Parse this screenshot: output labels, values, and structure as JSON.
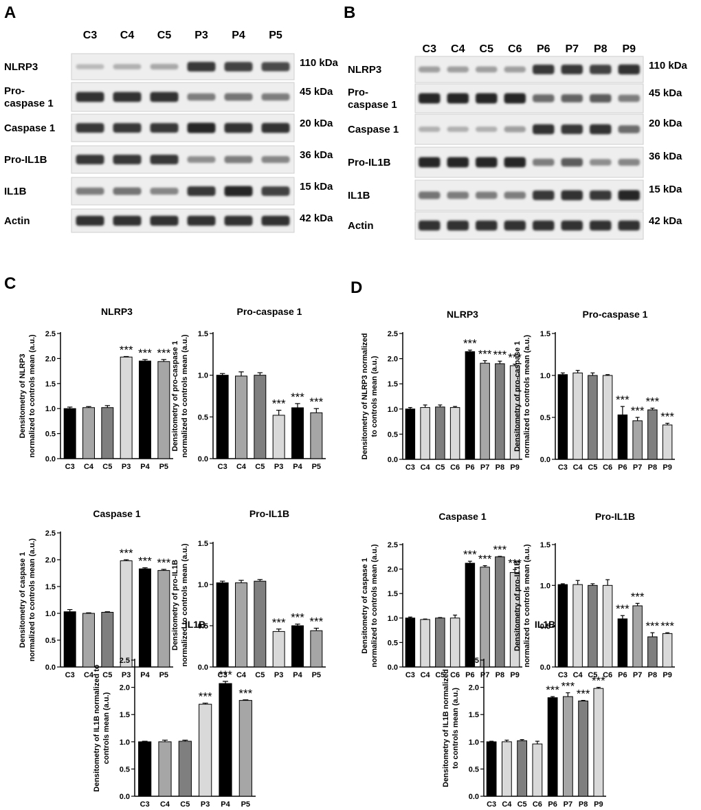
{
  "panels": {
    "A": "A",
    "B": "B",
    "C": "C",
    "D": "D"
  },
  "blots": [
    {
      "id": "blot-a",
      "lanes": [
        "C3",
        "C4",
        "C5",
        "P3",
        "P4",
        "P5"
      ],
      "rows": [
        {
          "label": [
            "NLRP3"
          ],
          "kda": "110 kDa"
        },
        {
          "label": [
            "Pro-",
            "caspase 1"
          ],
          "kda": "45 kDa"
        },
        {
          "label": [
            "Caspase 1"
          ],
          "kda": "20 kDa"
        },
        {
          "label": [
            "Pro-IL1B"
          ],
          "kda": "36 kDa"
        },
        {
          "label": [
            "IL1B"
          ],
          "kda": "15 kDa"
        },
        {
          "label": [
            "Actin"
          ],
          "kda": "42 kDa"
        }
      ],
      "intensity": [
        [
          0.15,
          0.2,
          0.25,
          0.9,
          0.85,
          0.8
        ],
        [
          0.95,
          0.95,
          0.95,
          0.5,
          0.55,
          0.5
        ],
        [
          0.9,
          0.9,
          0.9,
          1.0,
          0.95,
          0.95
        ],
        [
          0.9,
          0.9,
          0.9,
          0.4,
          0.5,
          0.45
        ],
        [
          0.5,
          0.55,
          0.45,
          0.9,
          1.0,
          0.85
        ],
        [
          0.95,
          0.95,
          0.95,
          0.95,
          0.95,
          0.95
        ]
      ]
    },
    {
      "id": "blot-b",
      "lanes": [
        "C3",
        "C4",
        "C5",
        "C6",
        "P6",
        "P7",
        "P8",
        "P9"
      ],
      "rows": [
        {
          "label": [
            "NLRP3"
          ],
          "kda": "110 kDa"
        },
        {
          "label": [
            "Pro-",
            "caspase 1"
          ],
          "kda": "45 kDa"
        },
        {
          "label": [
            "Caspase 1"
          ],
          "kda": "20 kDa"
        },
        {
          "label": [
            "Pro-IL1B"
          ],
          "kda": "36 kDa"
        },
        {
          "label": [
            "IL1B"
          ],
          "kda": "15 kDa"
        },
        {
          "label": [
            "Actin"
          ],
          "kda": "42 kDa"
        }
      ],
      "intensity": [
        [
          0.3,
          0.3,
          0.3,
          0.3,
          0.9,
          0.9,
          0.85,
          0.95
        ],
        [
          1.0,
          1.0,
          1.0,
          1.0,
          0.6,
          0.65,
          0.7,
          0.5
        ],
        [
          0.2,
          0.2,
          0.2,
          0.3,
          0.95,
          0.9,
          0.95,
          0.6
        ],
        [
          1.0,
          1.0,
          1.0,
          1.0,
          0.5,
          0.7,
          0.4,
          0.45
        ],
        [
          0.55,
          0.5,
          0.5,
          0.5,
          0.9,
          0.95,
          0.9,
          1.0
        ],
        [
          0.95,
          0.95,
          0.95,
          0.95,
          0.95,
          0.95,
          0.95,
          0.95
        ]
      ]
    }
  ],
  "chart_data": [
    {
      "id": "c-nlrp3",
      "type": "bar",
      "title": "NLRP3",
      "ylabel": [
        "Densitometry of NLRP3",
        "normalized to controls mean (a.u.)"
      ],
      "categories": [
        "C3",
        "C4",
        "C5",
        "P3",
        "P4",
        "P5"
      ],
      "values": [
        1.0,
        1.02,
        1.02,
        2.03,
        1.95,
        1.94
      ],
      "errors": [
        0.03,
        0.02,
        0.04,
        0.01,
        0.03,
        0.04
      ],
      "significance": [
        "",
        "",
        "",
        "***",
        "***",
        "***"
      ],
      "ylim": [
        0,
        2.5
      ],
      "yticks": [
        "0.0",
        "0.5",
        "1.0",
        "1.5",
        "2.0",
        "2.5"
      ]
    },
    {
      "id": "c-procasp1",
      "type": "bar",
      "title": "Pro-caspase 1",
      "ylabel": [
        "Densitometry of pro-caspase 1",
        "normalized to controls mean (a.u.)"
      ],
      "categories": [
        "C3",
        "C4",
        "C5",
        "P3",
        "P4",
        "P5"
      ],
      "values": [
        1.0,
        0.99,
        1.0,
        0.52,
        0.61,
        0.55
      ],
      "errors": [
        0.02,
        0.05,
        0.03,
        0.06,
        0.05,
        0.05
      ],
      "significance": [
        "",
        "",
        "",
        "***",
        "***",
        "***"
      ],
      "ylim": [
        0,
        1.5
      ],
      "yticks": [
        "0.0",
        "0.5",
        "1.0",
        "1.5"
      ]
    },
    {
      "id": "c-casp1",
      "type": "bar",
      "title": "Caspase 1",
      "ylabel": [
        "Densitometry of caspase 1",
        "normalized to controls mean (a.u.)"
      ],
      "categories": [
        "C3",
        "C4",
        "C5",
        "P3",
        "P4",
        "P5"
      ],
      "values": [
        1.03,
        1.0,
        1.02,
        1.98,
        1.83,
        1.8
      ],
      "errors": [
        0.04,
        0.01,
        0.01,
        0.02,
        0.02,
        0.02
      ],
      "significance": [
        "",
        "",
        "",
        "***",
        "***",
        "***"
      ],
      "ylim": [
        0,
        2.5
      ],
      "yticks": [
        "0.0",
        "0.5",
        "1.0",
        "1.5",
        "2.0",
        "2.5"
      ]
    },
    {
      "id": "c-proil1b",
      "type": "bar",
      "title": "Pro-IL1B",
      "ylabel": [
        "Densitometry of pro-IL1B",
        "normalized to controls mean (a.u.)"
      ],
      "categories": [
        "C3",
        "C4",
        "C5",
        "P3",
        "P4",
        "P5"
      ],
      "values": [
        1.02,
        1.02,
        1.04,
        0.43,
        0.5,
        0.44
      ],
      "errors": [
        0.02,
        0.03,
        0.02,
        0.03,
        0.02,
        0.03
      ],
      "significance": [
        "",
        "",
        "",
        "***",
        "***",
        "***"
      ],
      "ylim": [
        0,
        1.5
      ],
      "yticks": [
        "0.0",
        "0.5",
        "1.0",
        "1.5"
      ]
    },
    {
      "id": "c-il1b",
      "type": "bar",
      "title": "IL1B",
      "ylabel": [
        "Densitometry of IL1B normalized to",
        "controls mean (a.u.)"
      ],
      "categories": [
        "C3",
        "C4",
        "C5",
        "P3",
        "P4",
        "P5"
      ],
      "values": [
        1.0,
        1.0,
        1.01,
        1.69,
        2.07,
        1.76
      ],
      "errors": [
        0.01,
        0.03,
        0.02,
        0.02,
        0.04,
        0.01
      ],
      "significance": [
        "",
        "",
        "",
        "***",
        "***",
        "***"
      ],
      "ylim": [
        0,
        2.5
      ],
      "yticks": [
        "0.0",
        "0.5",
        "1.0",
        "1.5",
        "2.0",
        "2.5"
      ]
    },
    {
      "id": "d-nlrp3",
      "type": "bar",
      "title": "NLRP3",
      "ylabel": [
        "Densitometry of NLRP3 normalized",
        "to controls mean (a.u.)"
      ],
      "categories": [
        "C3",
        "C4",
        "C5",
        "C6",
        "P6",
        "P7",
        "P8",
        "P9"
      ],
      "values": [
        1.0,
        1.03,
        1.04,
        1.03,
        2.14,
        1.91,
        1.9,
        1.86
      ],
      "errors": [
        0.03,
        0.05,
        0.04,
        0.02,
        0.03,
        0.05,
        0.05,
        0.03
      ],
      "significance": [
        "",
        "",
        "",
        "",
        "***",
        "***",
        "***",
        "***"
      ],
      "ylim": [
        0,
        2.5
      ],
      "yticks": [
        "0.0",
        "0.5",
        "1.0",
        "1.5",
        "2.0",
        "2.5"
      ]
    },
    {
      "id": "d-procasp1",
      "type": "bar",
      "title": "Pro-caspase 1",
      "ylabel": [
        "Densitometry of pro-caspase 1",
        "normalized to controls mean (a.u.)"
      ],
      "categories": [
        "C3",
        "C4",
        "C5",
        "C6",
        "P6",
        "P7",
        "P8",
        "P9"
      ],
      "values": [
        1.01,
        1.03,
        1.0,
        1.0,
        0.53,
        0.46,
        0.59,
        0.41
      ],
      "errors": [
        0.02,
        0.03,
        0.03,
        0.01,
        0.1,
        0.04,
        0.02,
        0.02
      ],
      "significance": [
        "",
        "",
        "",
        "",
        "***",
        "***",
        "***",
        "***"
      ],
      "ylim": [
        0,
        1.5
      ],
      "yticks": [
        "0.0",
        "0.5",
        "1.0",
        "1.5"
      ]
    },
    {
      "id": "d-casp1",
      "type": "bar",
      "title": "Caspase 1",
      "ylabel": [
        "Densitometry of caspase 1",
        "normalized to controls mean (a.u.)"
      ],
      "categories": [
        "C3",
        "C4",
        "C5",
        "C6",
        "P6",
        "P7",
        "P8",
        "P9"
      ],
      "values": [
        1.0,
        0.97,
        1.0,
        1.0,
        2.12,
        2.04,
        2.25,
        1.93
      ],
      "errors": [
        0.02,
        0.01,
        0.01,
        0.06,
        0.04,
        0.03,
        0.01,
        0.06
      ],
      "significance": [
        "",
        "",
        "",
        "",
        "***",
        "***",
        "***",
        "***"
      ],
      "ylim": [
        0,
        2.5
      ],
      "yticks": [
        "0.0",
        "0.5",
        "1.0",
        "1.5",
        "2.0",
        "2.5"
      ]
    },
    {
      "id": "d-proil1b",
      "type": "bar",
      "title": "Pro-IL1B",
      "ylabel": [
        "Densitometry of pro-IL1B",
        "normalized to controls mean (a.u.)"
      ],
      "categories": [
        "C3",
        "C4",
        "C5",
        "C6",
        "P6",
        "P7",
        "P8",
        "P9"
      ],
      "values": [
        1.01,
        1.01,
        1.0,
        1.0,
        0.59,
        0.75,
        0.37,
        0.41
      ],
      "errors": [
        0.01,
        0.05,
        0.02,
        0.07,
        0.04,
        0.03,
        0.05,
        0.01
      ],
      "significance": [
        "",
        "",
        "",
        "",
        "***",
        "***",
        "***",
        "***"
      ],
      "ylim": [
        0,
        1.5
      ],
      "yticks": [
        "0.0",
        "0.5",
        "1.0",
        "1.5"
      ]
    },
    {
      "id": "d-il1b",
      "type": "bar",
      "title": "IL1B",
      "ylabel": [
        "Densitometry of IL1B normalized",
        "to controls mean (a.u.)"
      ],
      "categories": [
        "C3",
        "C4",
        "C5",
        "C6",
        "P6",
        "P7",
        "P8",
        "P9"
      ],
      "values": [
        1.0,
        1.0,
        1.02,
        0.96,
        1.81,
        1.83,
        1.75,
        1.98
      ],
      "errors": [
        0.01,
        0.03,
        0.02,
        0.05,
        0.02,
        0.07,
        0.01,
        0.02
      ],
      "significance": [
        "",
        "",
        "",
        "",
        "***",
        "***",
        "***",
        "***"
      ],
      "ylim": [
        0,
        2.5
      ],
      "yticks": [
        "0.0",
        "0.5",
        "1.0",
        "1.5",
        "2.0",
        "2.5"
      ]
    }
  ],
  "colors": {
    "black": "#000000",
    "lightgray": "#d9d9d9",
    "midgray": "#a6a6a6",
    "darkgray": "#7f7f7f"
  }
}
